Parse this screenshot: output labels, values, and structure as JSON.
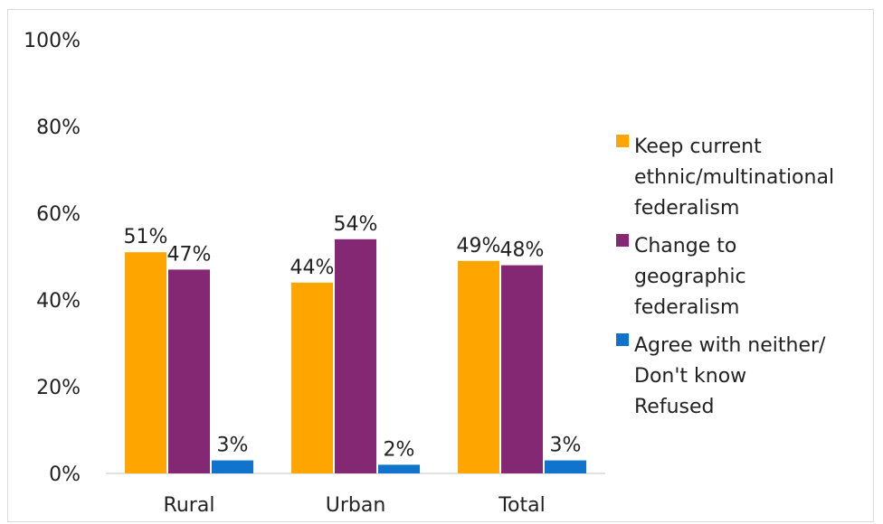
{
  "chart_data": {
    "type": "bar",
    "categories": [
      "Rural",
      "Urban",
      "Total"
    ],
    "series": [
      {
        "name": "Keep current ethnic/multinational federalism",
        "legend_lines": [
          "Keep current",
          "ethnic/multinational",
          "federalism"
        ],
        "values": [
          51,
          44,
          49
        ],
        "labels": [
          "51%",
          "44%",
          "49%"
        ],
        "color": "#FFA500"
      },
      {
        "name": "Change to geographic federalism",
        "legend_lines": [
          "Change to",
          "geographic",
          "federalism"
        ],
        "values": [
          47,
          54,
          48
        ],
        "labels": [
          "47%",
          "54%",
          "48%"
        ],
        "color": "#852874"
      },
      {
        "name": "Agree with neither/ Don't know Refused",
        "legend_lines": [
          "Agree with neither/",
          "Don't know",
          "Refused"
        ],
        "values": [
          3,
          2,
          3
        ],
        "labels": [
          "3%",
          "2%",
          "3%"
        ],
        "color": "#1074CC"
      }
    ],
    "ylim": [
      0,
      100
    ],
    "yticks": [
      "0%",
      "20%",
      "40%",
      "60%",
      "80%",
      "100%"
    ],
    "ytick_values": [
      0,
      20,
      40,
      60,
      80,
      100
    ],
    "grid": false,
    "legend_position": "right"
  }
}
